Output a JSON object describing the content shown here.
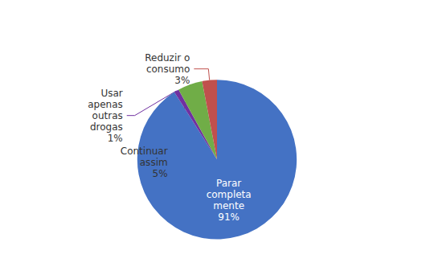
{
  "chart_data": {
    "type": "pie",
    "categories": [
      "Parar\ncompleta\nmente",
      "Usar\napenas\noutras\ndrogas",
      "Continuar\nassim",
      "Reduzir o\nconsumo"
    ],
    "values": [
      91,
      1,
      5,
      3
    ],
    "value_labels": [
      "91%",
      "1%",
      "5%",
      "3%"
    ],
    "colors": [
      "#4472C4",
      "#7030A0",
      "#70AD47",
      "#C0504D"
    ],
    "data_labels": true
  }
}
